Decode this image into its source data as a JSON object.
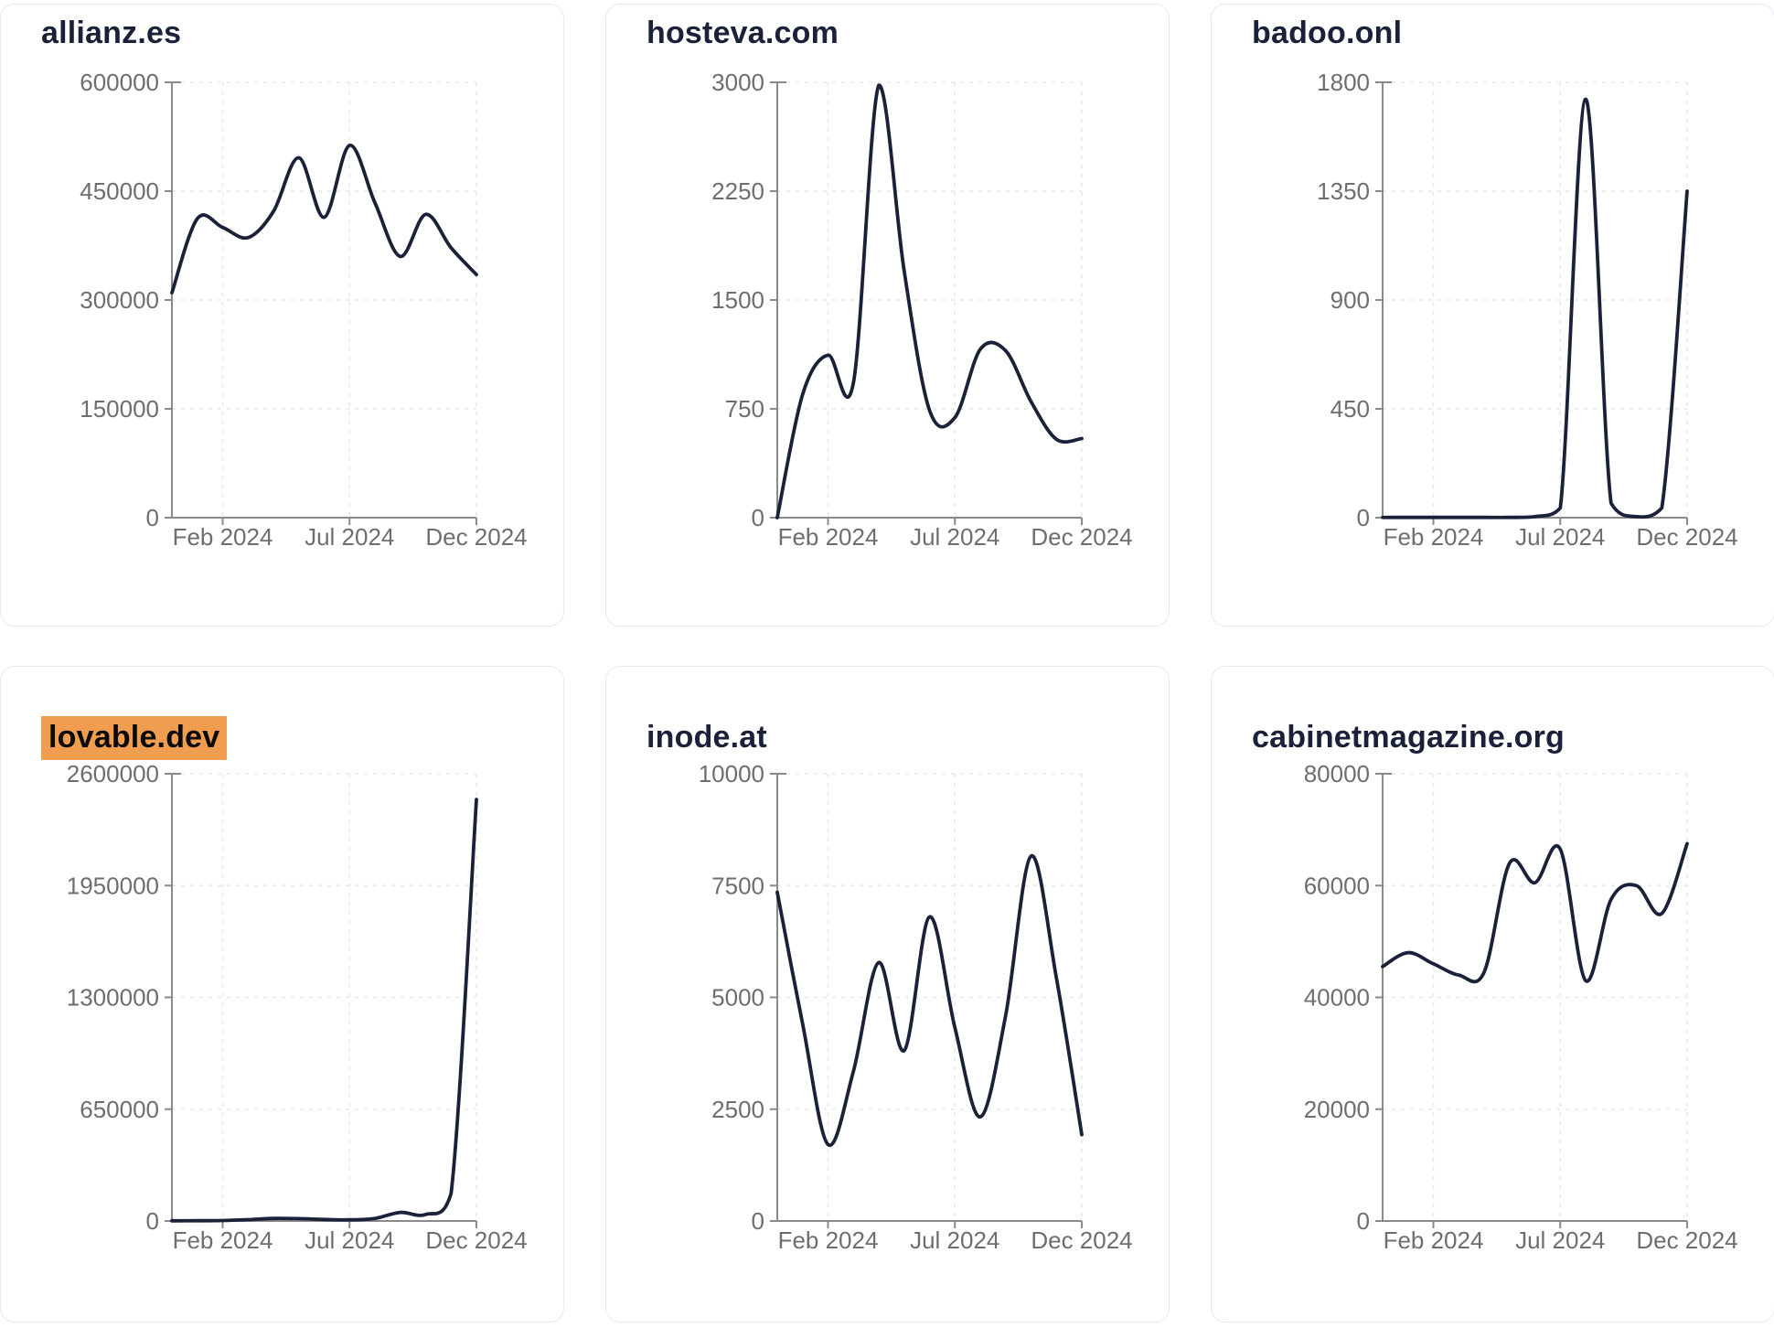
{
  "page": {
    "background": "#ffffff",
    "card_border_color": "#e7e9f2",
    "title_color": "#1a2138",
    "highlight_color": "#f09d4f",
    "line_color": "#1a2138",
    "axis_color": "#8a8a8a",
    "tick_label_color": "#6e6e6e",
    "grid_color": "#e7e7e7"
  },
  "chart_data": [
    {
      "type": "line",
      "title": "allianz.es",
      "title_highlighted": false,
      "x": [
        "Dec 2023",
        "Jan 2024",
        "Feb 2024",
        "Mar 2024",
        "Apr 2024",
        "May 2024",
        "Jun 2024",
        "Jul 2024",
        "Aug 2024",
        "Sep 2024",
        "Oct 2024",
        "Nov 2024",
        "Dec 2024"
      ],
      "values": [
        310000,
        412000,
        400000,
        386000,
        422000,
        496000,
        414000,
        513000,
        434000,
        360000,
        418000,
        372000,
        335000
      ],
      "y_ticks": [
        0,
        150000,
        300000,
        450000,
        600000
      ],
      "ylim": [
        0,
        600000
      ],
      "x_tick_labels": [
        "Feb 2024",
        "Jul 2024",
        "Dec 2024"
      ],
      "x_tick_indices": [
        2,
        7,
        12
      ],
      "grid": true,
      "legend": null
    },
    {
      "type": "line",
      "title": "hosteva.com",
      "title_highlighted": false,
      "x": [
        "Dec 2023",
        "Jan 2024",
        "Feb 2024",
        "Mar 2024",
        "Apr 2024",
        "May 2024",
        "Jun 2024",
        "Jul 2024",
        "Aug 2024",
        "Sep 2024",
        "Oct 2024",
        "Nov 2024",
        "Dec 2024"
      ],
      "values": [
        0,
        850,
        1120,
        930,
        2980,
        1700,
        740,
        690,
        1160,
        1150,
        800,
        540,
        545
      ],
      "y_ticks": [
        0,
        750,
        1500,
        2250,
        3000
      ],
      "ylim": [
        0,
        3000
      ],
      "x_tick_labels": [
        "Feb 2024",
        "Jul 2024",
        "Dec 2024"
      ],
      "x_tick_indices": [
        2,
        7,
        12
      ],
      "grid": true,
      "legend": null
    },
    {
      "type": "line",
      "title": "badoo.onl",
      "title_highlighted": false,
      "x": [
        "Dec 2023",
        "Jan 2024",
        "Feb 2024",
        "Mar 2024",
        "Apr 2024",
        "May 2024",
        "Jun 2024",
        "Jul 2024",
        "Aug 2024",
        "Sep 2024",
        "Oct 2024",
        "Nov 2024",
        "Dec 2024"
      ],
      "values": [
        1,
        1,
        1,
        1,
        1,
        1,
        4,
        40,
        1730,
        60,
        4,
        40,
        1350
      ],
      "y_ticks": [
        0,
        450,
        900,
        1350,
        1800
      ],
      "ylim": [
        0,
        1800
      ],
      "x_tick_labels": [
        "Feb 2024",
        "Jul 2024",
        "Dec 2024"
      ],
      "x_tick_indices": [
        2,
        7,
        12
      ],
      "grid": true,
      "legend": null
    },
    {
      "type": "line",
      "title": "lovable.dev",
      "title_highlighted": true,
      "x": [
        "Dec 2023",
        "Jan 2024",
        "Feb 2024",
        "Mar 2024",
        "Apr 2024",
        "May 2024",
        "Jun 2024",
        "Jul 2024",
        "Aug 2024",
        "Sep 2024",
        "Oct 2024",
        "Nov 2024",
        "Dec 2024"
      ],
      "values": [
        1000,
        1500,
        2500,
        8000,
        15000,
        14000,
        9000,
        7000,
        15000,
        50000,
        38000,
        160000,
        2450000
      ],
      "y_ticks": [
        0,
        650000,
        1300000,
        1950000,
        2600000
      ],
      "ylim": [
        0,
        2600000
      ],
      "x_tick_labels": [
        "Feb 2024",
        "Jul 2024",
        "Dec 2024"
      ],
      "x_tick_indices": [
        2,
        7,
        12
      ],
      "grid": true,
      "legend": null
    },
    {
      "type": "line",
      "title": "inode.at",
      "title_highlighted": false,
      "x": [
        "Dec 2023",
        "Jan 2024",
        "Feb 2024",
        "Mar 2024",
        "Apr 2024",
        "May 2024",
        "Jun 2024",
        "Jul 2024",
        "Aug 2024",
        "Sep 2024",
        "Oct 2024",
        "Nov 2024",
        "Dec 2024"
      ],
      "values": [
        7350,
        4400,
        1710,
        3350,
        5780,
        3810,
        6800,
        4320,
        2330,
        4600,
        8160,
        5430,
        1930
      ],
      "y_ticks": [
        0,
        2500,
        5000,
        7500,
        10000
      ],
      "ylim": [
        0,
        10000
      ],
      "x_tick_labels": [
        "Feb 2024",
        "Jul 2024",
        "Dec 2024"
      ],
      "x_tick_indices": [
        2,
        7,
        12
      ],
      "grid": true,
      "legend": null
    },
    {
      "type": "line",
      "title": "cabinetmagazine.org",
      "title_highlighted": false,
      "x": [
        "Dec 2023",
        "Jan 2024",
        "Feb 2024",
        "Mar 2024",
        "Apr 2024",
        "May 2024",
        "Jun 2024",
        "Jul 2024",
        "Aug 2024",
        "Sep 2024",
        "Oct 2024",
        "Nov 2024",
        "Dec 2024"
      ],
      "values": [
        45500,
        48000,
        46000,
        44000,
        44500,
        64000,
        60500,
        66500,
        43000,
        57500,
        60000,
        55000,
        67500
      ],
      "y_ticks": [
        0,
        20000,
        40000,
        60000,
        80000
      ],
      "ylim": [
        0,
        80000
      ],
      "x_tick_labels": [
        "Feb 2024",
        "Jul 2024",
        "Dec 2024"
      ],
      "x_tick_indices": [
        2,
        7,
        12
      ],
      "grid": true,
      "legend": null
    }
  ]
}
